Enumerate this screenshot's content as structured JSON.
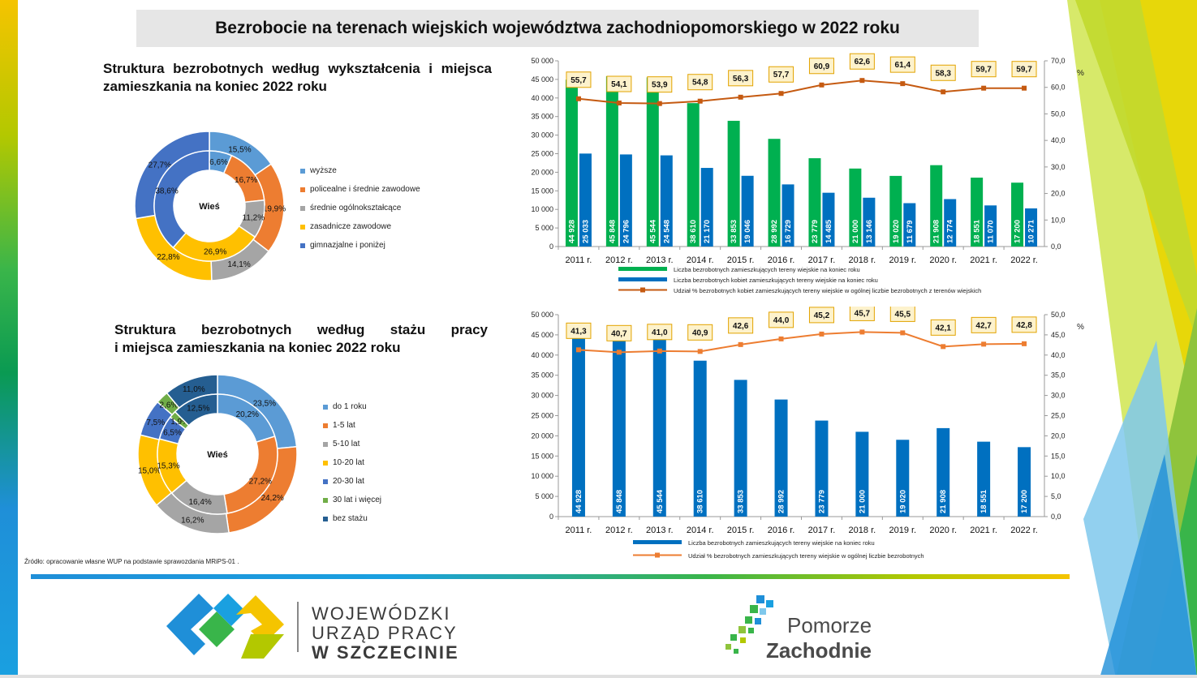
{
  "title": "Bezrobocie na terenach wiejskich województwa zachodniopomorskiego w 2022 roku",
  "section1_title": {
    "line1": "Struktura bezrobotnych według wykształcenia i miejsca",
    "line2": "zamieszkania na koniec 2022 roku"
  },
  "section2_title": {
    "line1": "Struktura bezrobotnych według stażu pracy",
    "line2": "i miejsca zamieszkania na koniec 2022 roku"
  },
  "source_note": "Źródło: opracowanie własne WUP na podstawie sprawozdania MRiPS-01 .",
  "wup_logo": {
    "line1": "WOJEWÓDZKI",
    "line2": "URZĄD PRACY",
    "line3_a": "W",
    "line3_b": "SZCZECINIE"
  },
  "pz_logo": {
    "line1": "Pomorze",
    "line2": "Zachodnie"
  },
  "colors": {
    "green": "#00b050",
    "blue": "#0070c0",
    "orange_line": "#c55a11",
    "orange_line2": "#ed7d31",
    "label_bg": "#fdf2cc",
    "label_border": "#e2a300"
  },
  "chart_data": [
    {
      "type": "pie",
      "variant": "donut-two-rings",
      "center_label": "Wieś",
      "legend": [
        "wyższe",
        "policealne i średnie zawodowe",
        "średnie ogólnokształcące",
        "zasadnicze zawodowe",
        "gimnazjalne i poniżej"
      ],
      "colors": [
        "#5b9bd5",
        "#ed7d31",
        "#a5a5a5",
        "#ffc000",
        "#4472c4"
      ],
      "outer": {
        "values": [
          15.5,
          19.9,
          14.1,
          22.8,
          27.7
        ],
        "labels": [
          "15,5%",
          "19,9%",
          "14,1%",
          "22,8%",
          "27,7%"
        ]
      },
      "inner": {
        "values": [
          6.6,
          16.7,
          11.2,
          26.9,
          38.6
        ],
        "labels": [
          "6,6%",
          "16,7%",
          "11,2%",
          "26,9%",
          "38,6%"
        ]
      }
    },
    {
      "type": "pie",
      "variant": "donut-two-rings",
      "center_label": "Wieś",
      "legend": [
        "do 1 roku",
        "1-5 lat",
        "5-10 lat",
        "10-20 lat",
        "20-30 lat",
        "30 lat i więcej",
        "bez stażu"
      ],
      "colors": [
        "#5b9bd5",
        "#ed7d31",
        "#a5a5a5",
        "#ffc000",
        "#4472c4",
        "#70ad47",
        "#255e91"
      ],
      "outer": {
        "values": [
          23.5,
          24.2,
          16.2,
          15.0,
          7.5,
          2.6,
          11.0
        ],
        "labels": [
          "23,5%",
          "24,2%",
          "16,2%",
          "15,0%",
          "7,5%",
          "2,6%",
          "11,0%"
        ]
      },
      "inner": {
        "values": [
          20.2,
          27.2,
          16.4,
          15.3,
          6.5,
          1.9,
          12.5
        ],
        "labels": [
          "20,2%",
          "27,2%",
          "16,4%",
          "15,3%",
          "6,5%",
          "1,9%",
          "12,5%"
        ]
      }
    },
    {
      "type": "bar",
      "categories": [
        "2011 r.",
        "2012 r.",
        "2013 r.",
        "2014 r.",
        "2015 r.",
        "2016 r.",
        "2017 r.",
        "2018 r.",
        "2019 r.",
        "2020 r.",
        "2021 r.",
        "2022 r."
      ],
      "ylim": [
        0,
        50000
      ],
      "yticks": [
        "0",
        "5 000",
        "10 000",
        "15 000",
        "20 000",
        "25 000",
        "30 000",
        "35 000",
        "40 000",
        "45 000",
        "50 000"
      ],
      "y2lim": [
        0,
        70
      ],
      "y2ticks": [
        "0,0",
        "10,0",
        "20,0",
        "30,0",
        "40,0",
        "50,0",
        "60,0",
        "70,0"
      ],
      "y2unit": "%",
      "series": [
        {
          "name": "Liczba bezrobotnych zamieszkujących tereny wiejskie na koniec roku",
          "kind": "bar",
          "color": "#00b050",
          "values": [
            44928,
            45848,
            45544,
            38610,
            33853,
            28992,
            23779,
            21000,
            19020,
            21908,
            18551,
            17200
          ],
          "labels": [
            "44 928",
            "45 848",
            "45 544",
            "38 610",
            "33 853",
            "28 992",
            "23 779",
            "21 000",
            "19 020",
            "21 908",
            "18 551",
            "17 200"
          ]
        },
        {
          "name": "Liczba bezrobotnych kobiet zamieszkujących tereny wiejskie na koniec roku",
          "kind": "bar",
          "color": "#0070c0",
          "values": [
            25033,
            24796,
            24548,
            21170,
            19046,
            16729,
            14485,
            13146,
            11679,
            12774,
            11070,
            10271
          ],
          "labels": [
            "25 033",
            "24 796",
            "24 548",
            "21 170",
            "19 046",
            "16 729",
            "14 485",
            "13 146",
            "11 679",
            "12 774",
            "11 070",
            "10 271"
          ]
        },
        {
          "name": "Udział % bezrobotnych kobiet zamieszkujących tereny wiejskie w ogólnej liczbie bezrobotnych z terenów wiejskich",
          "kind": "line",
          "axis": "y2",
          "color": "#c55a11",
          "values": [
            55.7,
            54.1,
            53.9,
            54.8,
            56.3,
            57.7,
            60.9,
            62.6,
            61.4,
            58.3,
            59.7,
            59.7
          ],
          "labels": [
            "55,7",
            "54,1",
            "53,9",
            "54,8",
            "56,3",
            "57,7",
            "60,9",
            "62,6",
            "61,4",
            "58,3",
            "59,7",
            "59,7"
          ]
        }
      ]
    },
    {
      "type": "bar",
      "categories": [
        "2011 r.",
        "2012 r.",
        "2013 r.",
        "2014 r.",
        "2015 r.",
        "2016 r.",
        "2017 r.",
        "2018 r.",
        "2019 r.",
        "2020 r.",
        "2021 r.",
        "2022 r."
      ],
      "ylim": [
        0,
        50000
      ],
      "yticks": [
        "0",
        "5 000",
        "10 000",
        "15 000",
        "20 000",
        "25 000",
        "30 000",
        "35 000",
        "40 000",
        "45 000",
        "50 000"
      ],
      "y2lim": [
        0,
        50
      ],
      "y2ticks": [
        "0,0",
        "5,0",
        "10,0",
        "15,0",
        "20,0",
        "25,0",
        "30,0",
        "35,0",
        "40,0",
        "45,0",
        "50,0"
      ],
      "y2unit": "%",
      "series": [
        {
          "name": "Liczba bezrobotnych zamieszkujących tereny wiejskie na koniec roku",
          "kind": "bar",
          "color": "#0070c0",
          "values": [
            44928,
            45848,
            45544,
            38610,
            33853,
            28992,
            23779,
            21000,
            19020,
            21908,
            18551,
            17200
          ],
          "labels": [
            "44 928",
            "45 848",
            "45 544",
            "38 610",
            "33 853",
            "28 992",
            "23 779",
            "21 000",
            "19 020",
            "21 908",
            "18 551",
            "17 200"
          ]
        },
        {
          "name": "Udział % bezrobotnych zamieszkujących tereny wiejskie w ogólnej liczbie bezrobotnych",
          "kind": "line",
          "axis": "y2",
          "color": "#ed7d31",
          "values": [
            41.3,
            40.7,
            41.0,
            40.9,
            42.6,
            44.0,
            45.2,
            45.7,
            45.5,
            42.1,
            42.7,
            42.8
          ],
          "labels": [
            "41,3",
            "40,7",
            "41,0",
            "40,9",
            "42,6",
            "44,0",
            "45,2",
            "45,7",
            "45,5",
            "42,1",
            "42,7",
            "42,8"
          ]
        }
      ]
    }
  ]
}
